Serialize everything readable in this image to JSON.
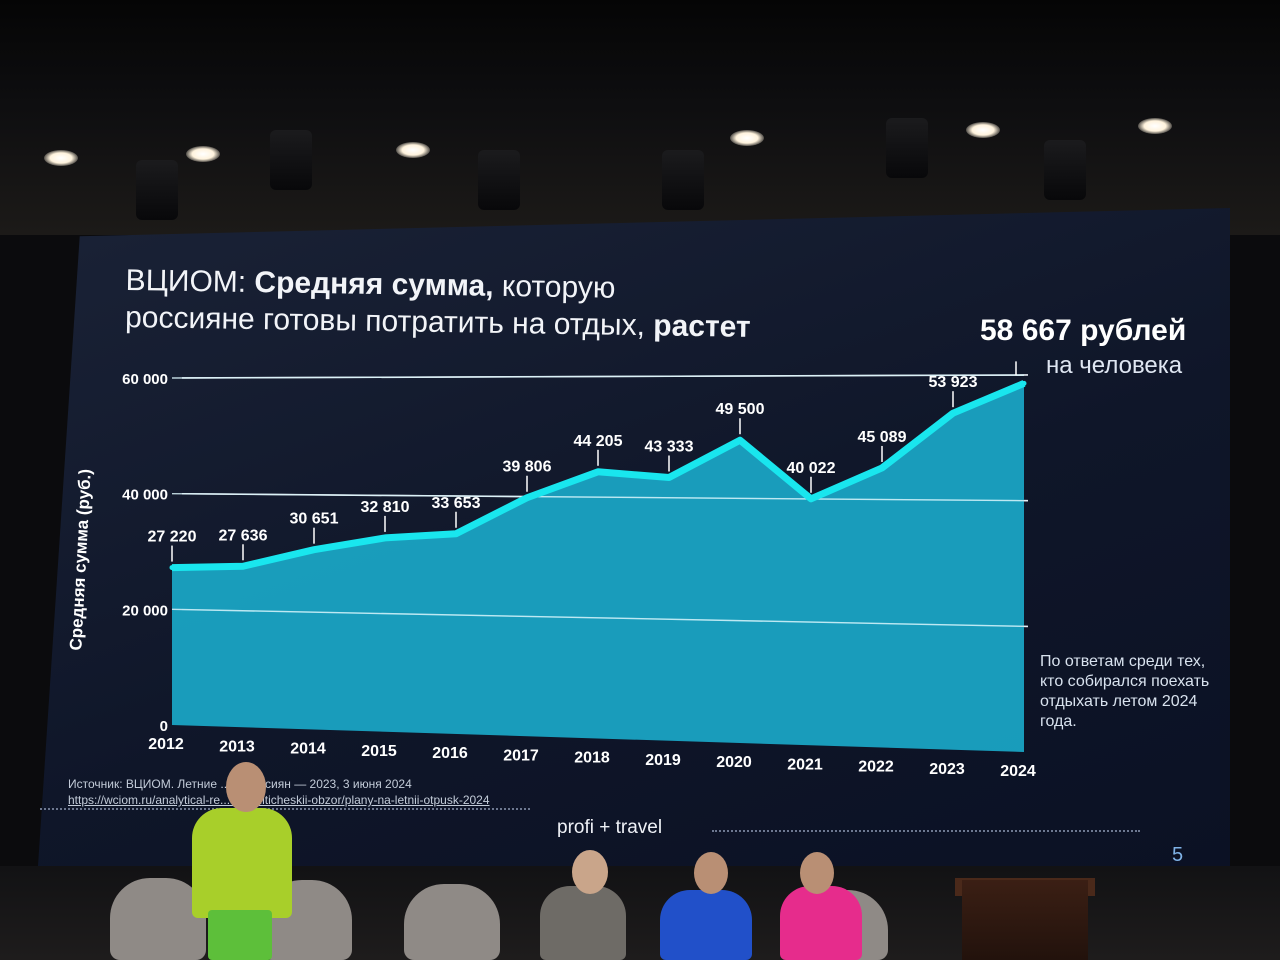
{
  "slide": {
    "title_plain_1": "ВЦИОМ: ",
    "title_bold_1": "Средняя сумма,",
    "title_plain_2": " которую",
    "title_plain_3": "россияне готовы потратить на отдых, ",
    "title_bold_2": "растет",
    "headline_value": "58 667 рублей",
    "headline_sub": "на человека",
    "note": "По ответам среди тех, кто собирался поехать отдыхать летом 2024 года.",
    "source_line": "Источник: ВЦИОМ. Летние ... ы россиян — 2023, 3 июня 2024",
    "source_url": "https://wciom.ru/analytical-re...s/analiticheskii-obzor/plany-na-letnii-otpusk-2024",
    "brand": "profi + travel",
    "page_number": "5"
  },
  "chart_data": {
    "type": "area",
    "ylabel": "Средняя сумма (руб.)",
    "ylim": [
      0,
      60000
    ],
    "yticks": [
      0,
      20000,
      40000,
      60000
    ],
    "ytick_labels": [
      "0",
      "20 000",
      "40 000",
      "60 000"
    ],
    "grid": true,
    "categories": [
      "2012",
      "2013",
      "2014",
      "2015",
      "2016",
      "2017",
      "2018",
      "2019",
      "2020",
      "2021",
      "2022",
      "2023",
      "2024"
    ],
    "values": [
      27220,
      27636,
      30651,
      32810,
      33653,
      39806,
      44205,
      43333,
      49500,
      40022,
      45089,
      53923,
      58667
    ],
    "data_labels": [
      "27 220",
      "27 636",
      "30 651",
      "32 810",
      "33 653",
      "39 806",
      "44 205",
      "43 333",
      "49 500",
      "40 022",
      "45 089",
      "53 923",
      ""
    ],
    "colors": {
      "fill": "#1aa8c8",
      "line": "#19e6ee",
      "grid": "#e8edf4",
      "label": "#ffffff"
    }
  }
}
